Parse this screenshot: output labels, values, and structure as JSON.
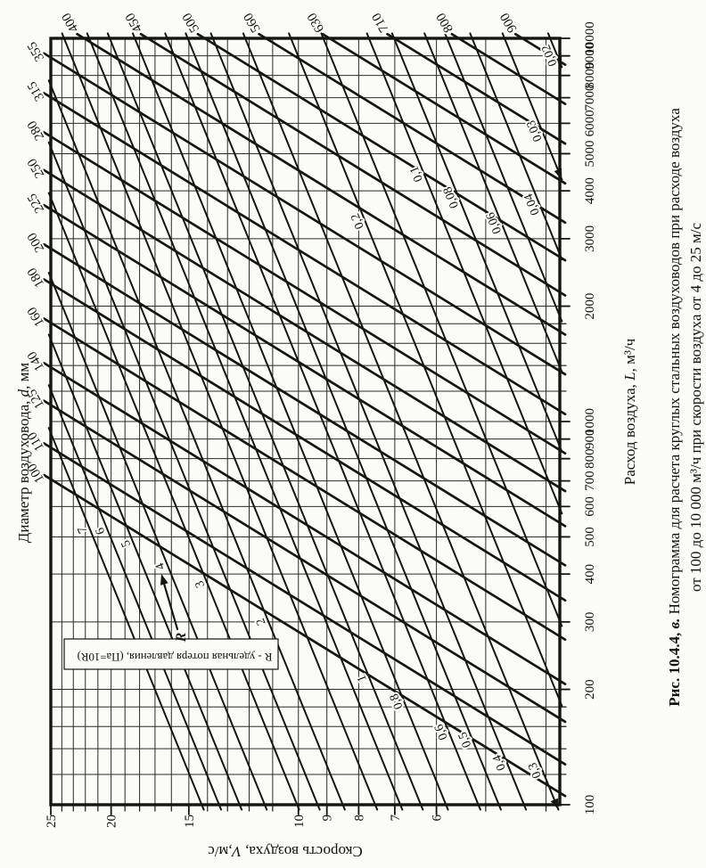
{
  "figure": {
    "caption_prefix": "Рис. 10.4.4, ",
    "caption_prefix_var": "в.",
    "caption_line1": "Номограмма для расчета круглых стальных воздуховодов при расходе воздуха",
    "caption_line2": "от 100 до 10 000 м³/ч при скорости воздуха от 4 до 25 м/с"
  },
  "chart_data": {
    "type": "line",
    "title": "Номограмма для расчета круглых стальных воздуховодов",
    "axes": {
      "flow": {
        "label_pre": "Расход воздуха, ",
        "label_var": "L",
        "label_post": ", м³/ч",
        "scale": "log",
        "min": 100,
        "max": 10000,
        "labeled_ticks": [
          100,
          200,
          300,
          400,
          500,
          600,
          700,
          800,
          900,
          1000,
          2000,
          3000,
          4000,
          5000,
          6000,
          7000,
          8000,
          9000,
          10000
        ],
        "minor_ticks": [
          120,
          140,
          160,
          180,
          1200,
          1400,
          1600,
          1800
        ]
      },
      "velocity": {
        "label_pre": "Скорость воздуха, ",
        "label_var": "V",
        "label_post": ",м/с",
        "scale": "log",
        "min": 4,
        "max": 25,
        "labeled_ticks": [
          25,
          20,
          15,
          10,
          9,
          8,
          7,
          6
        ],
        "grid_values": [
          4,
          5,
          6,
          7,
          8,
          9,
          10,
          11,
          12,
          13,
          14,
          15,
          16,
          17,
          18,
          19,
          20,
          21,
          22,
          23,
          24,
          25
        ]
      },
      "diameter": {
        "label_pre": "Диаметр воздуховода, ",
        "label_var": "d",
        "label_post": ", мм"
      }
    },
    "diameter_lines_mm": [
      100,
      110,
      125,
      140,
      160,
      180,
      200,
      225,
      250,
      280,
      315,
      355,
      400,
      450,
      500,
      560,
      630,
      710,
      800,
      900
    ],
    "pressure_loss_lines": [
      {
        "R": 0.02,
        "label": "0,02",
        "t": 0.45,
        "arrow_back": true
      },
      {
        "R": 0.03,
        "label": "0,03",
        "t": 0.35,
        "arrow_back": true
      },
      {
        "R": 0.04,
        "label": "0,04",
        "t": 0.25
      },
      {
        "R": 0.05
      },
      {
        "R": 0.06,
        "label": "0,06",
        "t": 0.45
      },
      {
        "R": 0.08,
        "label": "0,08",
        "t": 0.62
      },
      {
        "R": 0.1,
        "label": "0,1",
        "t": 0.72
      },
      {
        "R": 0.15
      },
      {
        "R": 0.2,
        "label": "0,2",
        "t": 0.73
      },
      {
        "R": 0.3,
        "label": "0,3",
        "t": 0.05,
        "arrow_back": true
      },
      {
        "R": 0.4,
        "label": "0,4",
        "t": 0.06
      },
      {
        "R": 0.5,
        "label": "0,5",
        "t": 0.09
      },
      {
        "R": 0.6,
        "label": "0,6",
        "t": 0.1
      },
      {
        "R": 0.8,
        "label": "0,8",
        "t": 0.14
      },
      {
        "R": 1,
        "label": "1",
        "t": 0.17
      },
      {
        "R": 1.2
      },
      {
        "R": 1.5
      },
      {
        "R": 2,
        "label": "2",
        "t": 0.26
      },
      {
        "R": 2.5
      },
      {
        "R": 3,
        "label": "3",
        "t": 0.37
      },
      {
        "R": 4,
        "label": "4",
        "t": 0.46
      },
      {
        "R": 5,
        "label": "5",
        "t": 0.57
      },
      {
        "R": 6,
        "label": "6",
        "t": 0.67
      },
      {
        "R": 7,
        "label": "7",
        "t": 0.75
      }
    ],
    "legend_note": "R - удельная потеря давления, (Па=10R)",
    "annotation": {
      "text": "R",
      "target_R": 4
    },
    "colors": {
      "ink": "#151515",
      "grid": "#2b2b2b",
      "paper": "#fbfbf8"
    }
  }
}
